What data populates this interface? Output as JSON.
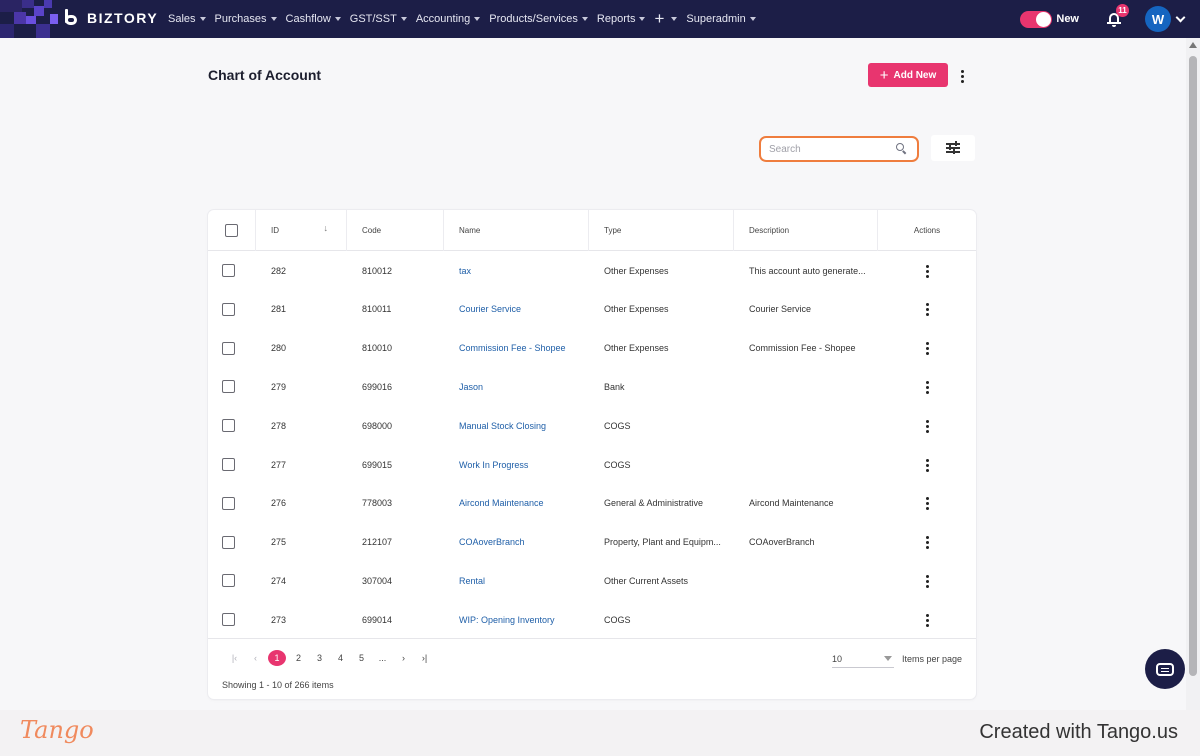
{
  "nav": {
    "brand": "BIZTORY",
    "menu": [
      {
        "label": "Sales"
      },
      {
        "label": "Purchases"
      },
      {
        "label": "Cashflow"
      },
      {
        "label": "GST/SST"
      },
      {
        "label": "Accounting"
      },
      {
        "label": "Products/Services"
      },
      {
        "label": "Reports"
      },
      {
        "label": "Superadmin"
      }
    ],
    "plus_symbol": "+",
    "toggle_label": "New",
    "notification_count": "11",
    "avatar_initial": "W",
    "accent_color": "#e8356f",
    "bar_color": "#1c1e47"
  },
  "page": {
    "title": "Chart of Account",
    "add_button": "Add New",
    "add_symbol": "+",
    "search_placeholder": "Search"
  },
  "table": {
    "headers": [
      "ID",
      "Code",
      "Name",
      "Type",
      "Description",
      "Actions"
    ],
    "sort_indicator": "↓",
    "rows": [
      {
        "id": "282",
        "code": "810012",
        "name": "tax",
        "type": "Other Expenses",
        "description": "This account auto generate..."
      },
      {
        "id": "281",
        "code": "810011",
        "name": "Courier Service",
        "type": "Other Expenses",
        "description": "Courier Service"
      },
      {
        "id": "280",
        "code": "810010",
        "name": "Commission Fee - Shopee",
        "type": "Other Expenses",
        "description": "Commission Fee - Shopee"
      },
      {
        "id": "279",
        "code": "699016",
        "name": "Jason",
        "type": "Bank",
        "description": ""
      },
      {
        "id": "278",
        "code": "698000",
        "name": "Manual Stock Closing",
        "type": "COGS",
        "description": ""
      },
      {
        "id": "277",
        "code": "699015",
        "name": "Work In Progress",
        "type": "COGS",
        "description": ""
      },
      {
        "id": "276",
        "code": "778003",
        "name": "Aircond Maintenance",
        "type": "General & Administrative",
        "description": "Aircond Maintenance"
      },
      {
        "id": "275",
        "code": "212107",
        "name": "COAoverBranch",
        "type": "Property, Plant and Equipm...",
        "description": "COAoverBranch"
      },
      {
        "id": "274",
        "code": "307004",
        "name": "Rental",
        "type": "Other Current Assets",
        "description": ""
      },
      {
        "id": "273",
        "code": "699014",
        "name": "WIP: Opening Inventory",
        "type": "COGS",
        "description": ""
      }
    ]
  },
  "pagination": {
    "first": "|‹",
    "prev": "‹",
    "pages": [
      "1",
      "2",
      "3",
      "4",
      "5",
      "..."
    ],
    "next": "›",
    "last": "›|",
    "current_page": "1",
    "items_per_page_value": "10",
    "items_per_page_label": "Items per page",
    "showing": "Showing 1 - 10 of 266 items"
  },
  "footer": {
    "logo": "Tango",
    "created_with": "Created with Tango.us"
  }
}
